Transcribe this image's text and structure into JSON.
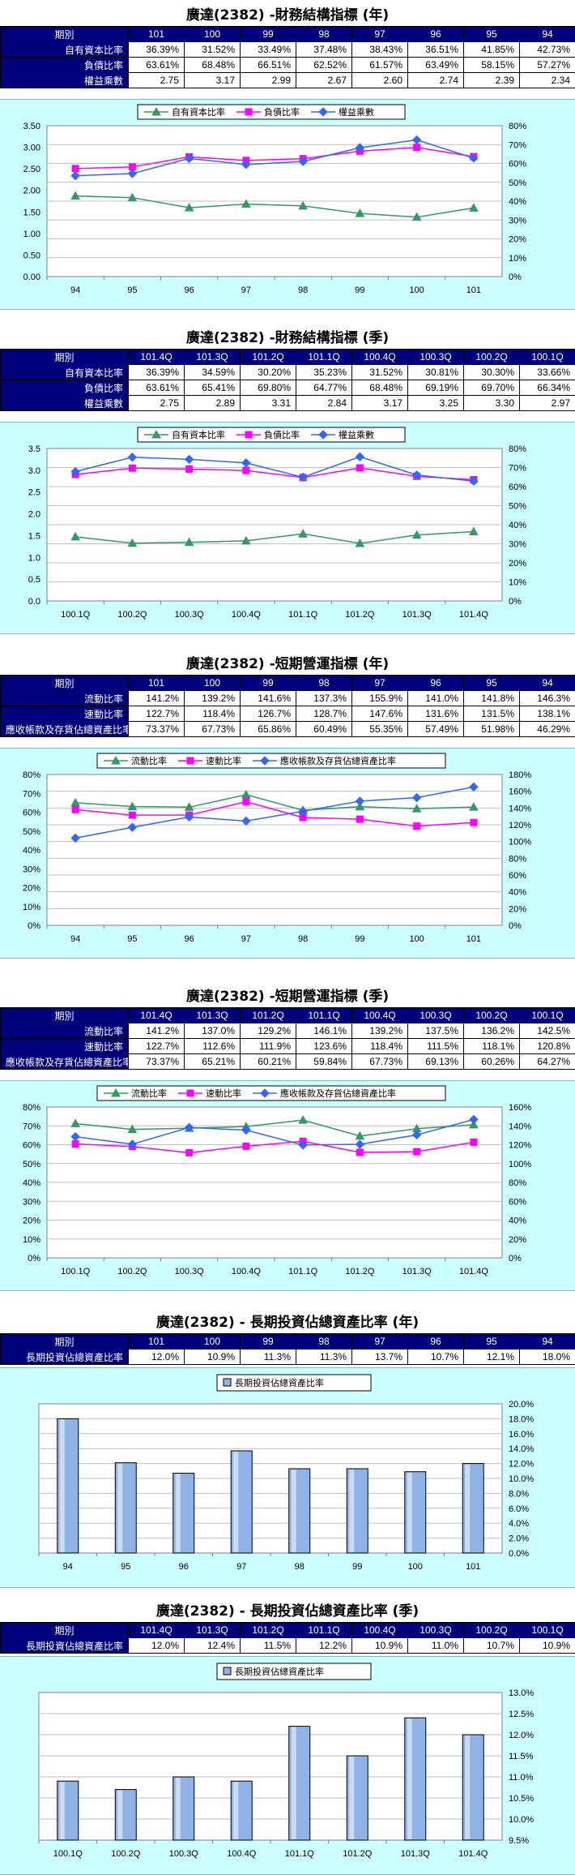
{
  "colors": {
    "header_bg": "#00007d",
    "chart_bg": "#ccffff",
    "green": "#339966",
    "magenta": "#ff00ff",
    "blue": "#3366ff",
    "bar_fill": "#8fb3e6"
  },
  "sections": [
    {
      "title": "廣達(2382) -財務結構指標 (年)",
      "header_label": "期別",
      "periods": [
        "101",
        "100",
        "99",
        "98",
        "97",
        "96",
        "95",
        "94"
      ],
      "rows": [
        {
          "label": "自有資本比率",
          "values": [
            "36.39%",
            "31.52%",
            "33.49%",
            "37.48%",
            "38.43%",
            "36.51%",
            "41.85%",
            "42.73%"
          ]
        },
        {
          "label": "負債比率",
          "values": [
            "63.61%",
            "68.48%",
            "66.51%",
            "62.52%",
            "61.57%",
            "63.49%",
            "58.15%",
            "57.27%"
          ]
        },
        {
          "label": "權益乘數",
          "values": [
            "2.75",
            "3.17",
            "2.99",
            "2.67",
            "2.60",
            "2.74",
            "2.39",
            "2.34"
          ]
        }
      ]
    },
    {
      "title": "廣達(2382) -財務結構指標 (季)",
      "header_label": "期別",
      "periods": [
        "101.4Q",
        "101.3Q",
        "101.2Q",
        "101.1Q",
        "100.4Q",
        "100.3Q",
        "100.2Q",
        "100.1Q"
      ],
      "rows": [
        {
          "label": "自有資本比率",
          "values": [
            "36.39%",
            "34.59%",
            "30.20%",
            "35.23%",
            "31.52%",
            "30.81%",
            "30.30%",
            "33.66%"
          ]
        },
        {
          "label": "負債比率",
          "values": [
            "63.61%",
            "65.41%",
            "69.80%",
            "64.77%",
            "68.48%",
            "69.19%",
            "69.70%",
            "66.34%"
          ]
        },
        {
          "label": "權益乘數",
          "values": [
            "2.75",
            "2.89",
            "3.31",
            "2.84",
            "3.17",
            "3.25",
            "3.30",
            "2.97"
          ]
        }
      ]
    },
    {
      "title": "廣達(2382) -短期營運指標 (年)",
      "header_label": "期別",
      "periods": [
        "101",
        "100",
        "99",
        "98",
        "97",
        "96",
        "95",
        "94"
      ],
      "rows": [
        {
          "label": "流動比率",
          "values": [
            "141.2%",
            "139.2%",
            "141.6%",
            "137.3%",
            "155.9%",
            "141.0%",
            "141.8%",
            "146.3%"
          ]
        },
        {
          "label": "速動比率",
          "values": [
            "122.7%",
            "118.4%",
            "126.7%",
            "128.7%",
            "147.6%",
            "131.6%",
            "131.5%",
            "138.1%"
          ]
        },
        {
          "label": "應收帳款及存貨佔總資產比率",
          "values": [
            "73.37%",
            "67.73%",
            "65.86%",
            "60.49%",
            "55.35%",
            "57.49%",
            "51.98%",
            "46.29%"
          ]
        }
      ]
    },
    {
      "title": "廣達(2382) -短期營運指標 (季)",
      "header_label": "期別",
      "periods": [
        "101.4Q",
        "101.3Q",
        "101.2Q",
        "101.1Q",
        "100.4Q",
        "100.3Q",
        "100.2Q",
        "100.1Q"
      ],
      "rows": [
        {
          "label": "流動比率",
          "values": [
            "141.2%",
            "137.0%",
            "129.2%",
            "146.1%",
            "139.2%",
            "137.5%",
            "136.2%",
            "142.5%"
          ]
        },
        {
          "label": "速動比率",
          "values": [
            "122.7%",
            "112.6%",
            "111.9%",
            "123.6%",
            "118.4%",
            "111.5%",
            "118.1%",
            "120.8%"
          ]
        },
        {
          "label": "應收帳款及存貨佔總資產比率",
          "values": [
            "73.37%",
            "65.21%",
            "60.21%",
            "59.84%",
            "67.73%",
            "69.13%",
            "60.26%",
            "64.27%"
          ]
        }
      ]
    },
    {
      "title": "廣達(2382) - 長期投資佔總資產比率 (年)",
      "header_label": "期別",
      "periods": [
        "101",
        "100",
        "99",
        "98",
        "97",
        "96",
        "95",
        "94"
      ],
      "rows": [
        {
          "label": "長期投資佔總資產比率",
          "values": [
            "12.0%",
            "10.9%",
            "11.3%",
            "11.3%",
            "13.7%",
            "10.7%",
            "12.1%",
            "18.0%"
          ]
        }
      ]
    },
    {
      "title": "廣達(2382) - 長期投資佔總資產比率 (季)",
      "header_label": "期別",
      "periods": [
        "101.4Q",
        "101.3Q",
        "101.2Q",
        "101.1Q",
        "100.4Q",
        "100.3Q",
        "100.2Q",
        "100.1Q"
      ],
      "rows": [
        {
          "label": "長期投資佔總資產比率",
          "values": [
            "12.0%",
            "12.4%",
            "11.5%",
            "12.2%",
            "10.9%",
            "11.0%",
            "10.7%",
            "10.9%"
          ]
        }
      ]
    }
  ],
  "chart_data": [
    {
      "type": "line",
      "categories": [
        "94",
        "95",
        "96",
        "97",
        "98",
        "99",
        "100",
        "101"
      ],
      "left_axis": {
        "min": 0,
        "max": 3.5,
        "step": 0.5,
        "ticks": [
          "0.00",
          "0.50",
          "1.00",
          "1.50",
          "2.00",
          "2.50",
          "3.00",
          "3.50"
        ]
      },
      "right_axis": {
        "min": 0,
        "max": 0.8,
        "step": 0.1,
        "ticks": [
          "0%",
          "10%",
          "20%",
          "30%",
          "40%",
          "50%",
          "60%",
          "70%",
          "80%"
        ]
      },
      "series": [
        {
          "name": "自有資本比率",
          "axis": "right",
          "marker": "triangle",
          "color": "#339966",
          "values": [
            0.4273,
            0.4185,
            0.3651,
            0.3843,
            0.3748,
            0.3349,
            0.3152,
            0.3639
          ]
        },
        {
          "name": "負債比率",
          "axis": "right",
          "marker": "square",
          "color": "#ff00ff",
          "values": [
            0.5727,
            0.5815,
            0.6349,
            0.6157,
            0.6252,
            0.6651,
            0.6848,
            0.6361
          ]
        },
        {
          "name": "權益乘數",
          "axis": "left",
          "marker": "diamond",
          "color": "#3366ff",
          "values": [
            2.34,
            2.39,
            2.74,
            2.6,
            2.67,
            2.99,
            3.17,
            2.75
          ]
        }
      ]
    },
    {
      "type": "line",
      "categories": [
        "100.1Q",
        "100.2Q",
        "100.3Q",
        "100.4Q",
        "101.1Q",
        "101.2Q",
        "101.3Q",
        "101.4Q"
      ],
      "left_axis": {
        "min": 0,
        "max": 3.5,
        "step": 0.5,
        "ticks": [
          "0.0",
          "0.5",
          "1.0",
          "1.5",
          "2.0",
          "2.5",
          "3.0",
          "3.5"
        ]
      },
      "right_axis": {
        "min": 0,
        "max": 0.8,
        "step": 0.1,
        "ticks": [
          "0%",
          "10%",
          "20%",
          "30%",
          "40%",
          "50%",
          "60%",
          "70%",
          "80%"
        ]
      },
      "series": [
        {
          "name": "自有資本比率",
          "axis": "right",
          "marker": "triangle",
          "color": "#339966",
          "values": [
            0.3366,
            0.303,
            0.3081,
            0.3152,
            0.3523,
            0.302,
            0.3459,
            0.3639
          ]
        },
        {
          "name": "負債比率",
          "axis": "right",
          "marker": "square",
          "color": "#ff00ff",
          "values": [
            0.6634,
            0.697,
            0.6919,
            0.6848,
            0.6477,
            0.698,
            0.6541,
            0.6361
          ]
        },
        {
          "name": "權益乘數",
          "axis": "left",
          "marker": "diamond",
          "color": "#3366ff",
          "values": [
            2.97,
            3.3,
            3.25,
            3.17,
            2.84,
            3.31,
            2.89,
            2.75
          ]
        }
      ]
    },
    {
      "type": "line",
      "categories": [
        "94",
        "95",
        "96",
        "97",
        "98",
        "99",
        "100",
        "101"
      ],
      "left_axis": {
        "min": 0,
        "max": 0.8,
        "step": 0.1,
        "ticks": [
          "0%",
          "10%",
          "20%",
          "30%",
          "40%",
          "50%",
          "60%",
          "70%",
          "80%"
        ]
      },
      "right_axis": {
        "min": 0,
        "max": 1.8,
        "step": 0.2,
        "ticks": [
          "0%",
          "20%",
          "40%",
          "60%",
          "80%",
          "100%",
          "120%",
          "140%",
          "160%",
          "180%"
        ]
      },
      "series": [
        {
          "name": "流動比率",
          "axis": "right",
          "marker": "triangle",
          "color": "#339966",
          "values": [
            1.463,
            1.418,
            1.41,
            1.559,
            1.373,
            1.416,
            1.392,
            1.412
          ]
        },
        {
          "name": "速動比率",
          "axis": "right",
          "marker": "square",
          "color": "#ff00ff",
          "values": [
            1.381,
            1.315,
            1.316,
            1.476,
            1.287,
            1.267,
            1.184,
            1.227
          ]
        },
        {
          "name": "應收帳款及存貨佔總資產比率",
          "axis": "left",
          "marker": "diamond",
          "color": "#3366ff",
          "values": [
            0.4629,
            0.5198,
            0.5749,
            0.5535,
            0.6049,
            0.6586,
            0.6773,
            0.7337
          ]
        }
      ]
    },
    {
      "type": "line",
      "categories": [
        "100.1Q",
        "100.2Q",
        "100.3Q",
        "100.4Q",
        "101.1Q",
        "101.2Q",
        "101.3Q",
        "101.4Q"
      ],
      "left_axis": {
        "min": 0,
        "max": 0.8,
        "step": 0.1,
        "ticks": [
          "0%",
          "10%",
          "20%",
          "30%",
          "40%",
          "50%",
          "60%",
          "70%",
          "80%"
        ]
      },
      "right_axis": {
        "min": 0,
        "max": 1.6,
        "step": 0.2,
        "ticks": [
          "0%",
          "20%",
          "40%",
          "60%",
          "80%",
          "100%",
          "120%",
          "140%",
          "160%"
        ]
      },
      "series": [
        {
          "name": "流動比率",
          "axis": "right",
          "marker": "triangle",
          "color": "#339966",
          "values": [
            1.425,
            1.362,
            1.375,
            1.392,
            1.461,
            1.292,
            1.37,
            1.412
          ]
        },
        {
          "name": "速動比率",
          "axis": "right",
          "marker": "square",
          "color": "#ff00ff",
          "values": [
            1.208,
            1.181,
            1.115,
            1.184,
            1.236,
            1.119,
            1.126,
            1.227
          ]
        },
        {
          "name": "應收帳款及存貨佔總資產比率",
          "axis": "left",
          "marker": "diamond",
          "color": "#3366ff",
          "values": [
            0.6427,
            0.6026,
            0.6913,
            0.6773,
            0.5984,
            0.6021,
            0.6521,
            0.7337
          ]
        }
      ]
    },
    {
      "type": "bar",
      "categories": [
        "94",
        "95",
        "96",
        "97",
        "98",
        "99",
        "100",
        "101"
      ],
      "right_axis": {
        "min": 0,
        "max": 0.2,
        "step": 0.02,
        "ticks": [
          "0.0%",
          "2.0%",
          "4.0%",
          "6.0%",
          "8.0%",
          "10.0%",
          "12.0%",
          "14.0%",
          "16.0%",
          "18.0%",
          "20.0%"
        ]
      },
      "series": [
        {
          "name": "長期投資佔總資產比率",
          "axis": "right",
          "color": "#8fb3e6",
          "values": [
            0.18,
            0.121,
            0.107,
            0.137,
            0.113,
            0.113,
            0.109,
            0.12
          ]
        }
      ]
    },
    {
      "type": "bar",
      "categories": [
        "100.1Q",
        "100.2Q",
        "100.3Q",
        "100.4Q",
        "101.1Q",
        "101.2Q",
        "101.3Q",
        "101.4Q"
      ],
      "right_axis": {
        "min": 0.095,
        "max": 0.13,
        "step": 0.005,
        "ticks": [
          "9.5%",
          "10.0%",
          "10.5%",
          "11.0%",
          "11.5%",
          "12.0%",
          "12.5%",
          "13.0%"
        ]
      },
      "series": [
        {
          "name": "長期投資佔總資產比率",
          "axis": "right",
          "color": "#8fb3e6",
          "values": [
            0.109,
            0.107,
            0.11,
            0.109,
            0.122,
            0.115,
            0.124,
            0.12
          ]
        }
      ]
    }
  ]
}
